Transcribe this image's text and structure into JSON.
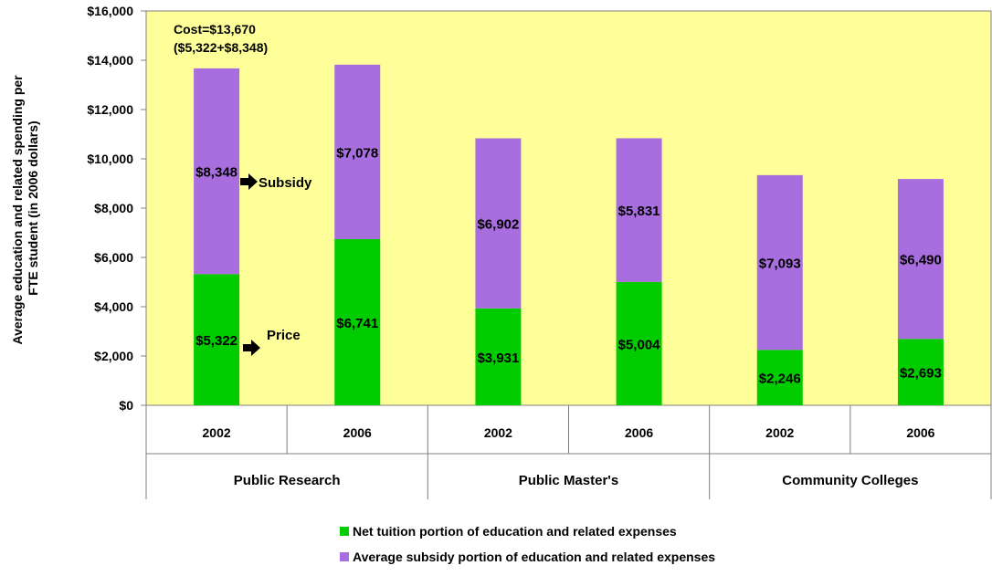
{
  "chart_data": {
    "type": "bar",
    "stacked": true,
    "ylabel_lines": [
      "Average education and related spending per",
      "FTE student  (in 2006 dollars)"
    ],
    "ylim": [
      0,
      16000
    ],
    "y_ticks": [
      "$0",
      "$2,000",
      "$4,000",
      "$6,000",
      "$8,000",
      "$10,000",
      "$12,000",
      "$14,000",
      "$16,000"
    ],
    "grid": false,
    "plot_background": "#ffff99",
    "groups": [
      {
        "label": "Public Research",
        "years": [
          "2002",
          "2006"
        ]
      },
      {
        "label": "Public Master's",
        "years": [
          "2002",
          "2006"
        ]
      },
      {
        "label": "Community Colleges",
        "years": [
          "2002",
          "2006"
        ]
      }
    ],
    "series": [
      {
        "name": "Net tuition portion of education and related expenses",
        "color": "#00cc00",
        "values": [
          5322,
          6741,
          3931,
          5004,
          2246,
          2693
        ],
        "labels": [
          "$5,322",
          "$6,741",
          "$3,931",
          "$5,004",
          "$2,246",
          "$2,693"
        ]
      },
      {
        "name": "Average subsidy portion of education and related expenses",
        "color": "#a86ee0",
        "values": [
          8348,
          7078,
          6902,
          5831,
          7093,
          6490
        ],
        "labels": [
          "$8,348",
          "$7,078",
          "$6,902",
          "$5,831",
          "$7,093",
          "$6,490"
        ]
      }
    ],
    "annotations": {
      "cost_line1": "Cost=$13,670",
      "cost_line2": "($5,322+$8,348)",
      "subsidy": "Subsidy",
      "price": "Price"
    },
    "legend_position": "bottom"
  }
}
